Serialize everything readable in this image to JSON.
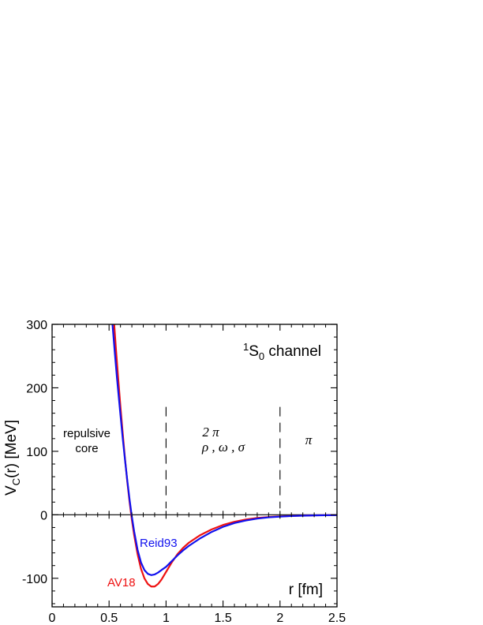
{
  "chart_data": {
    "type": "line",
    "title": "",
    "xlabel": "r [fm]",
    "ylabel_main": "V",
    "ylabel_sub": "C",
    "ylabel_rest": "(r)  [MeV]",
    "xlim": [
      0,
      2.5
    ],
    "ylim": [
      -145,
      300
    ],
    "xticks": [
      0,
      0.5,
      1,
      1.5,
      2,
      2.5
    ],
    "xtick_labels": [
      "0",
      "0.5",
      "1",
      "1.5",
      "2",
      "2.5"
    ],
    "yticks": [
      -100,
      0,
      100,
      200,
      300
    ],
    "ytick_labels": [
      "-100",
      "0",
      "100",
      "200",
      "300"
    ],
    "grid": false,
    "channel": {
      "sup": "1",
      "main": "S",
      "sub": "0",
      "rest": " channel"
    },
    "regions": [
      {
        "lines": [
          "repulsive",
          "core"
        ]
      },
      {
        "lines": [
          "2 π",
          "ρ , ω , σ"
        ]
      },
      {
        "lines": [
          "π"
        ]
      }
    ],
    "region_boundaries": [
      1,
      2
    ],
    "series": [
      {
        "name": "AV18",
        "color": "#ee1111",
        "x": [
          0.545,
          0.56,
          0.58,
          0.6,
          0.62,
          0.64,
          0.66,
          0.68,
          0.7,
          0.72,
          0.75,
          0.78,
          0.81,
          0.84,
          0.87,
          0.9,
          0.93,
          0.96,
          1.0,
          1.05,
          1.1,
          1.15,
          1.2,
          1.3,
          1.4,
          1.5,
          1.6,
          1.7,
          1.8,
          1.9,
          2.0,
          2.1,
          2.2,
          2.3,
          2.4,
          2.5
        ],
        "y": [
          300,
          262,
          215,
          170,
          128,
          88,
          52,
          20,
          -8,
          -32,
          -62,
          -85,
          -100,
          -109,
          -113,
          -113,
          -109,
          -102,
          -90,
          -75,
          -62,
          -52,
          -44,
          -32,
          -23,
          -16,
          -11,
          -7.5,
          -5,
          -3.5,
          -2.5,
          -1.8,
          -1.3,
          -0.9,
          -0.6,
          -0.4
        ]
      },
      {
        "name": "Reid93",
        "color": "#1111ee",
        "x": [
          0.53,
          0.55,
          0.57,
          0.6,
          0.62,
          0.64,
          0.66,
          0.68,
          0.7,
          0.72,
          0.75,
          0.78,
          0.81,
          0.84,
          0.87,
          0.9,
          0.93,
          0.96,
          1.0,
          1.05,
          1.1,
          1.15,
          1.2,
          1.3,
          1.4,
          1.5,
          1.6,
          1.7,
          1.8,
          1.9,
          2.0,
          2.1,
          2.2,
          2.3,
          2.4,
          2.5
        ],
        "y": [
          300,
          256,
          214,
          157,
          120,
          86,
          54,
          24,
          -3,
          -26,
          -55,
          -75,
          -87,
          -93,
          -95,
          -94,
          -91,
          -87,
          -82,
          -73,
          -64,
          -56,
          -49,
          -37,
          -27,
          -19,
          -13,
          -9,
          -6,
          -4,
          -2.8,
          -2,
          -1.4,
          -1,
          -0.7,
          -0.5
        ]
      }
    ],
    "series_labels": [
      "AV18",
      "Reid93"
    ]
  }
}
